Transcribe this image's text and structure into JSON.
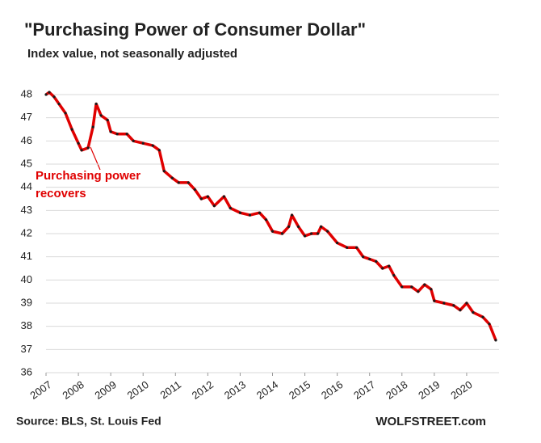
{
  "chart_data": {
    "type": "line",
    "title": "\"Purchasing Power of Consumer Dollar\"",
    "subtitle": "Index value, not seasonally adjusted",
    "annotation": [
      "Purchasing power",
      "recovers"
    ],
    "source": "Source: BLS, St. Louis Fed",
    "credit": "WOLFSTREET.com",
    "x": [
      2007.0,
      2007.1,
      2007.25,
      2007.4,
      2007.6,
      2007.8,
      2008.0,
      2008.1,
      2008.3,
      2008.45,
      2008.55,
      2008.7,
      2008.9,
      2009.0,
      2009.2,
      2009.5,
      2009.7,
      2010.0,
      2010.3,
      2010.5,
      2010.65,
      2010.9,
      2011.1,
      2011.4,
      2011.6,
      2011.8,
      2012.0,
      2012.2,
      2012.5,
      2012.7,
      2013.0,
      2013.3,
      2013.6,
      2013.8,
      2014.0,
      2014.3,
      2014.5,
      2014.6,
      2014.8,
      2015.0,
      2015.2,
      2015.4,
      2015.5,
      2015.7,
      2016.0,
      2016.3,
      2016.6,
      2016.8,
      2017.0,
      2017.2,
      2017.4,
      2017.6,
      2017.75,
      2018.0,
      2018.3,
      2018.5,
      2018.7,
      2018.9,
      2019.0,
      2019.3,
      2019.6,
      2019.8,
      2020.0,
      2020.2,
      2020.5,
      2020.7,
      2020.9
    ],
    "series": [
      {
        "color": "#e00000",
        "marker_color": "#1a1a1a",
        "values": [
          48.0,
          48.1,
          47.9,
          47.6,
          47.2,
          46.5,
          45.9,
          45.6,
          45.7,
          46.6,
          47.6,
          47.1,
          46.9,
          46.4,
          46.3,
          46.3,
          46.0,
          45.9,
          45.8,
          45.6,
          44.7,
          44.4,
          44.2,
          44.2,
          43.9,
          43.5,
          43.6,
          43.2,
          43.6,
          43.1,
          42.9,
          42.8,
          42.9,
          42.6,
          42.1,
          42.0,
          42.3,
          42.8,
          42.3,
          41.9,
          42.0,
          42.0,
          42.3,
          42.1,
          41.6,
          41.4,
          41.4,
          41.0,
          40.9,
          40.8,
          40.5,
          40.6,
          40.2,
          39.7,
          39.7,
          39.5,
          39.8,
          39.6,
          39.1,
          39.0,
          38.9,
          38.7,
          39.0,
          38.6,
          38.4,
          38.1,
          37.4
        ]
      }
    ],
    "xlim": [
      2007,
      2021
    ],
    "xticks": [
      2007,
      2008,
      2009,
      2010,
      2011,
      2012,
      2013,
      2014,
      2015,
      2016,
      2017,
      2018,
      2019,
      2020
    ],
    "ylim": [
      36,
      48
    ],
    "yticks": [
      36,
      37,
      38,
      39,
      40,
      41,
      42,
      43,
      44,
      45,
      46,
      47,
      48
    ],
    "grid": true
  }
}
